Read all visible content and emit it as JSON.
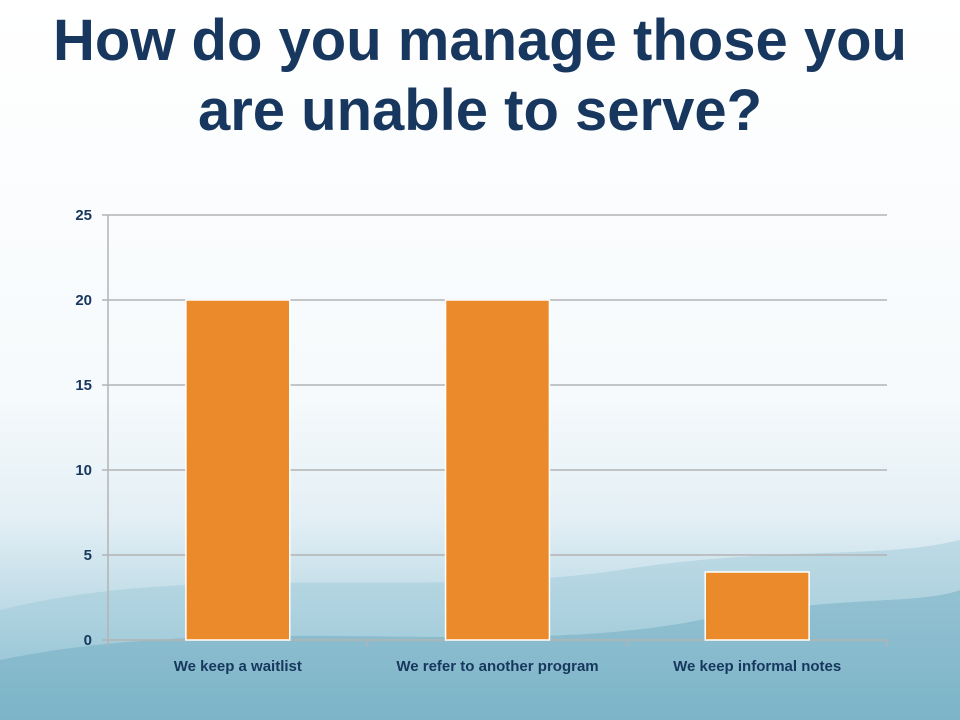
{
  "title": "How do you manage those you are unable to serve?",
  "colors": {
    "bar": "#ea8a2a",
    "title": "#17375e",
    "grid": "#b3b3b3"
  },
  "chart_data": {
    "type": "bar",
    "categories": [
      "We keep a waitlist",
      "We refer to another program",
      "We keep informal notes"
    ],
    "values": [
      20,
      20,
      4
    ],
    "title": "",
    "xlabel": "",
    "ylabel": "",
    "ylim": [
      0,
      25
    ],
    "yticks": [
      0,
      5,
      10,
      15,
      20,
      25
    ],
    "grid": true,
    "legend": "none"
  }
}
